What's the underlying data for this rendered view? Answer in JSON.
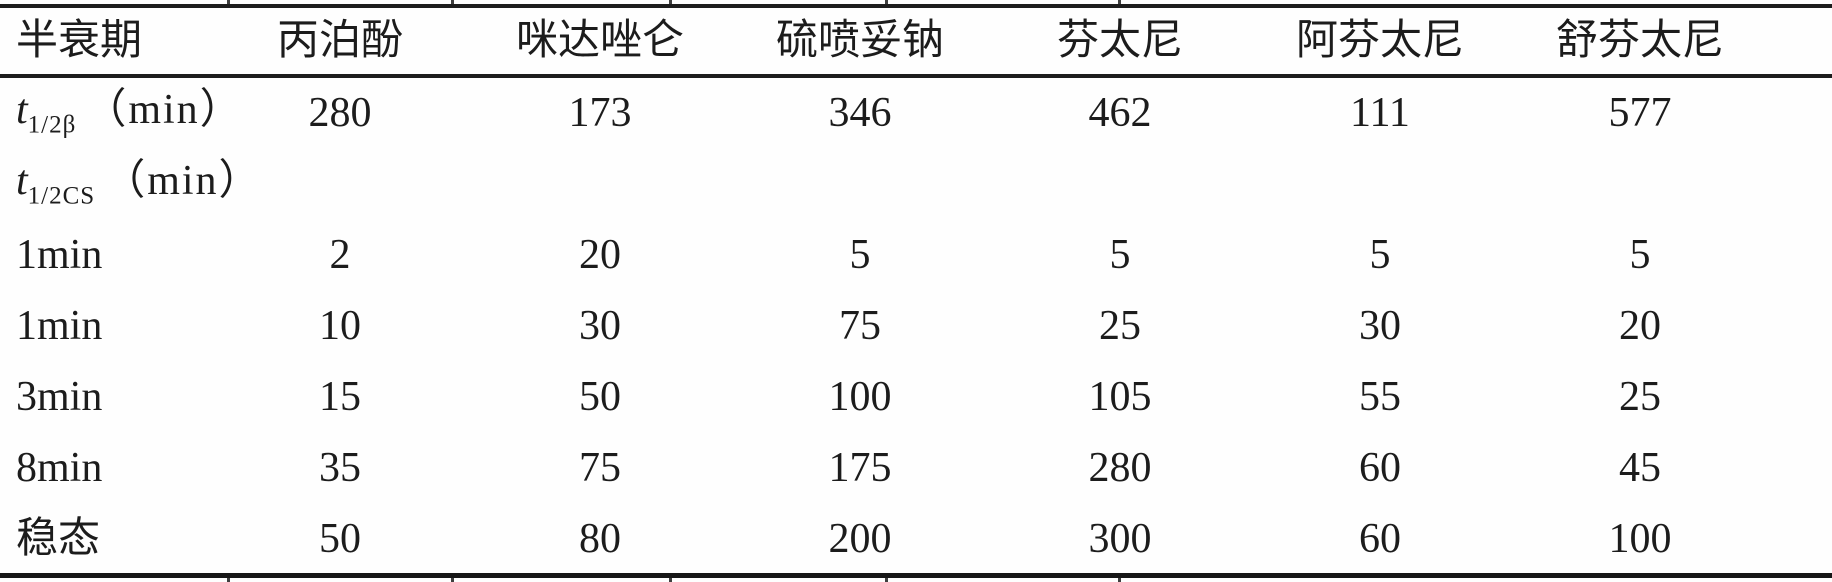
{
  "theme": {
    "ink": "#1c1c1c",
    "rule_color": "#1d1d1d",
    "paper": "#fefefe"
  },
  "table": {
    "columns": [
      "半衰期",
      "丙泊酚",
      "咪达唑仑",
      "硫喷妥钠",
      "芬太尼",
      "阿芬太尼",
      "舒芬太尼"
    ],
    "rows": [
      {
        "label": {
          "italic": "t",
          "sub": "1/2β",
          "rest": "（min）"
        },
        "values": [
          "280",
          "173",
          "346",
          "462",
          "111",
          "577"
        ]
      },
      {
        "label": {
          "italic": "t",
          "sub": "1/2CS",
          "rest": "（min）"
        },
        "values": [
          "",
          "",
          "",
          "",
          "",
          ""
        ]
      },
      {
        "label": {
          "text": "1min"
        },
        "values": [
          "2",
          "20",
          "5",
          "5",
          "5",
          "5"
        ]
      },
      {
        "label": {
          "text": "1min"
        },
        "values": [
          "10",
          "30",
          "75",
          "25",
          "30",
          "20"
        ]
      },
      {
        "label": {
          "text": "3min"
        },
        "values": [
          "15",
          "50",
          "100",
          "105",
          "55",
          "25"
        ]
      },
      {
        "label": {
          "text": "8min"
        },
        "values": [
          "35",
          "75",
          "175",
          "280",
          "60",
          "45"
        ]
      },
      {
        "label": {
          "text": "稳态"
        },
        "values": [
          "50",
          "80",
          "200",
          "300",
          "60",
          "100"
        ]
      }
    ]
  }
}
